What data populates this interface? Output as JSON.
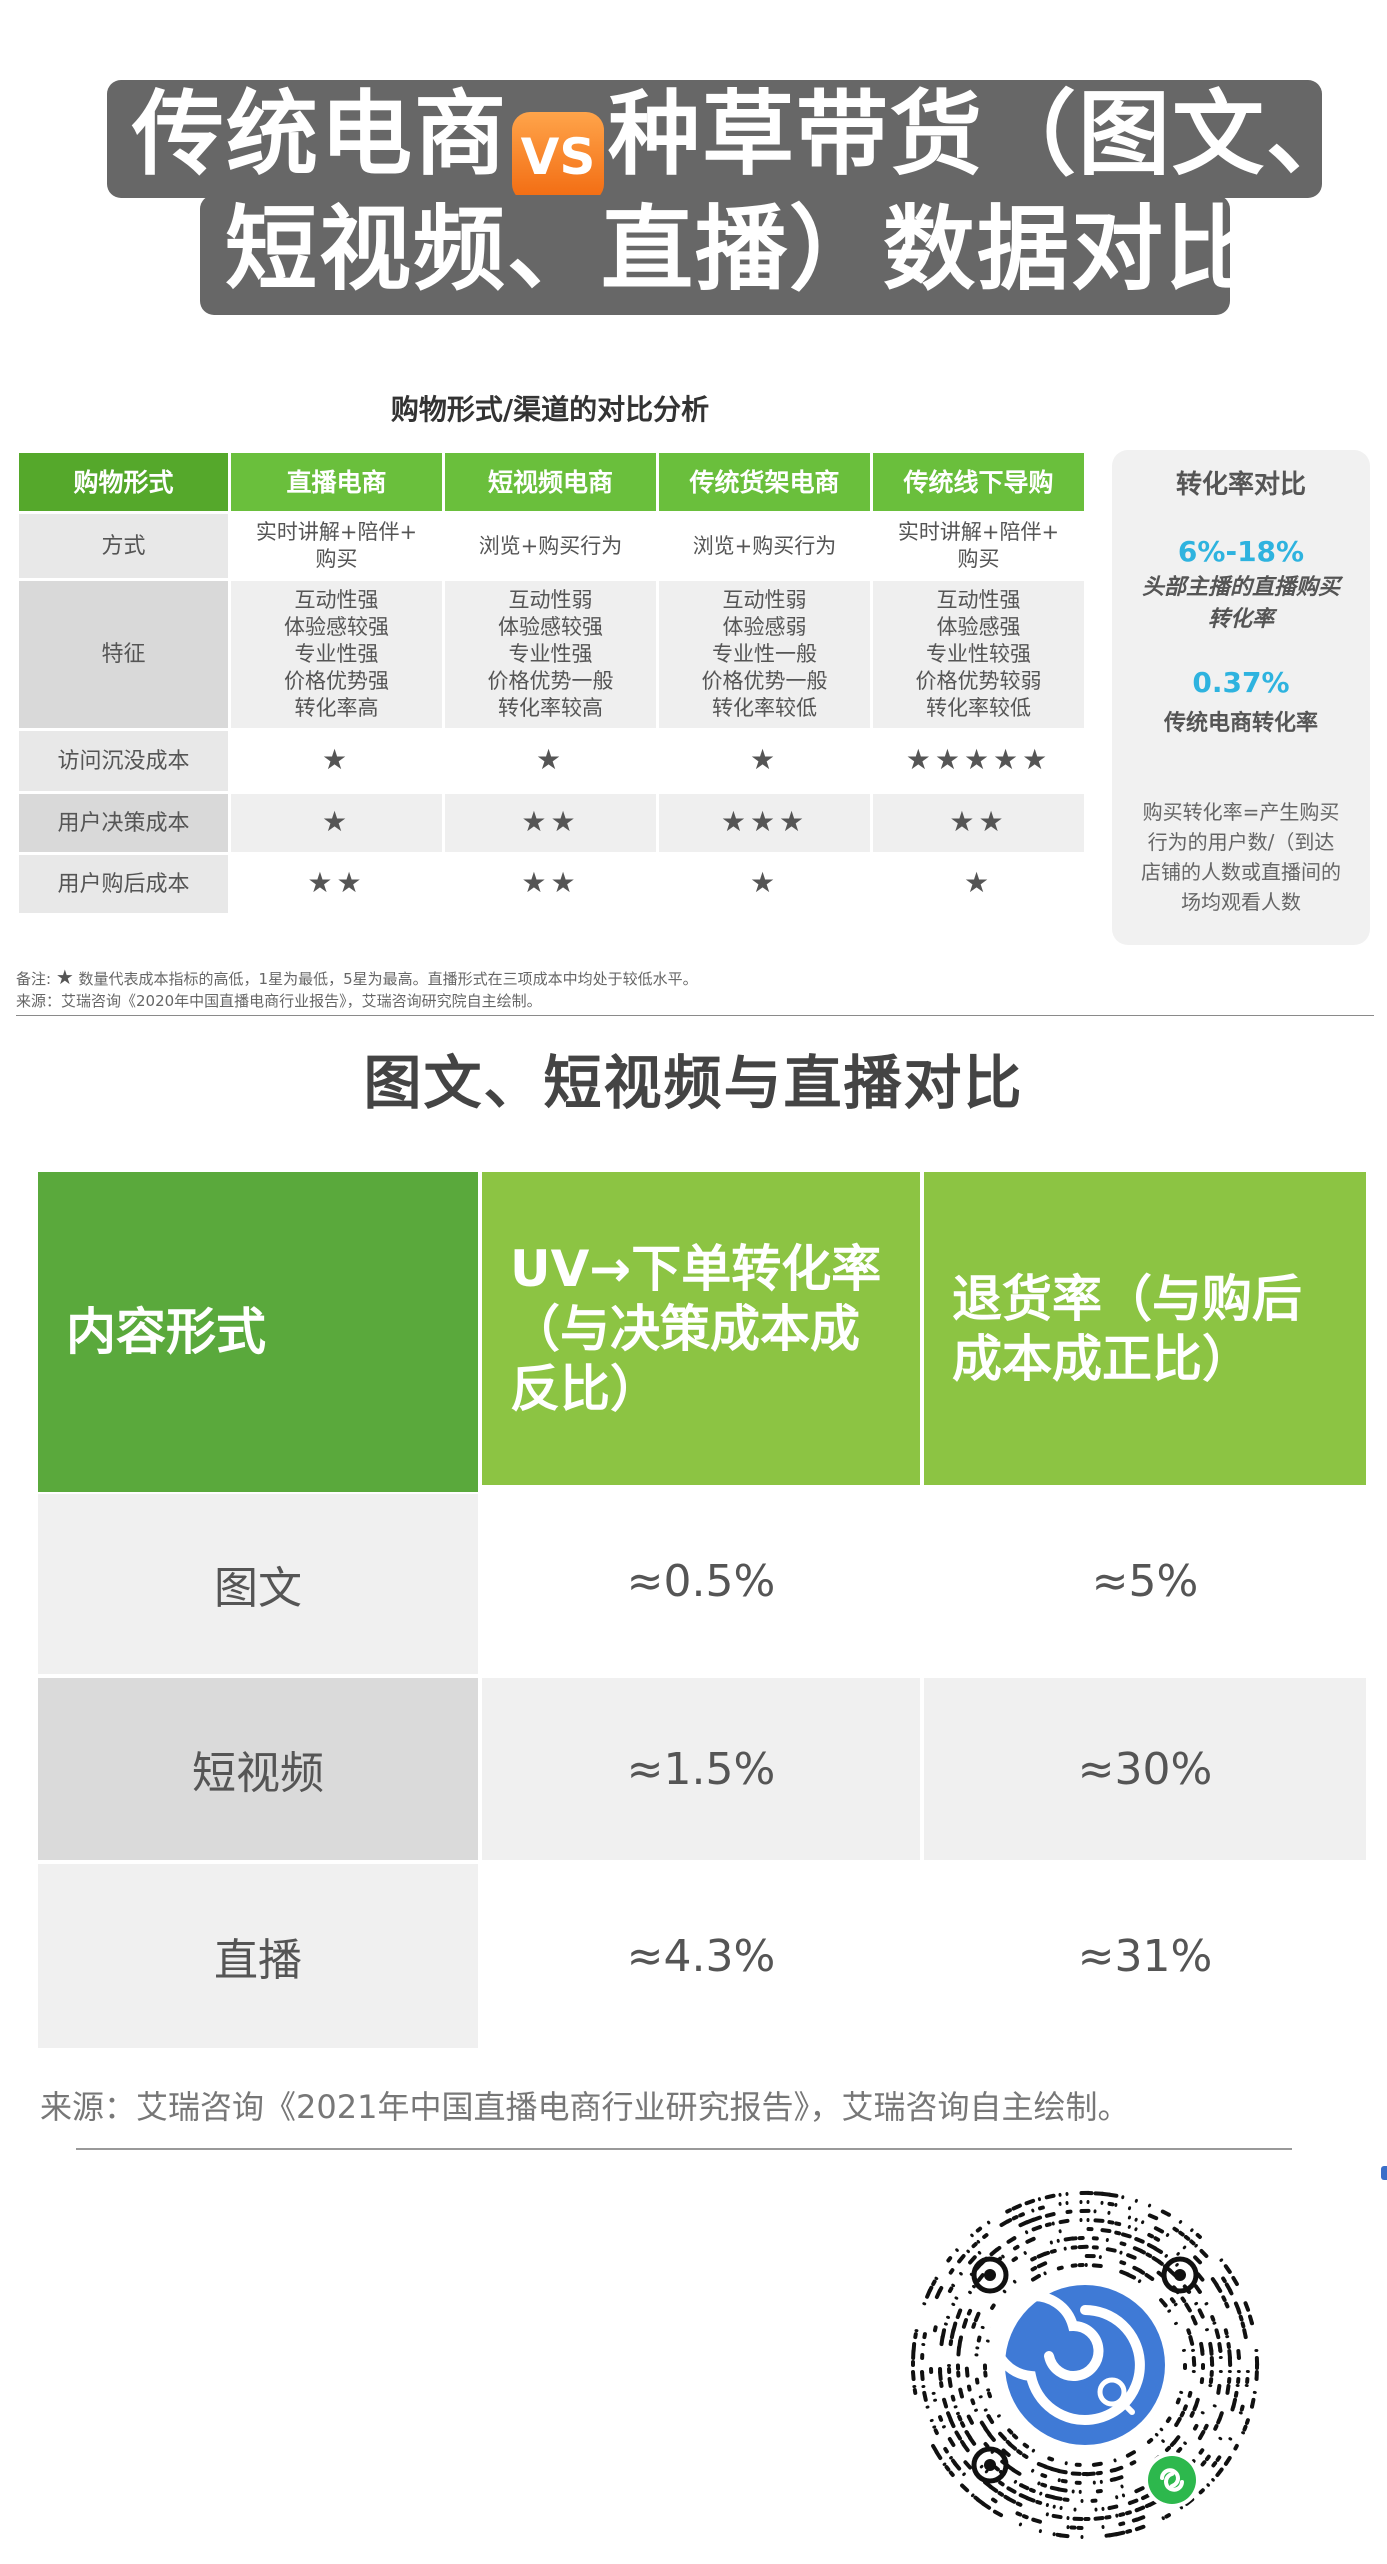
{
  "title": {
    "line1_part1": "传统电商",
    "vs_badge": "VS",
    "line1_part2": "种草带货（图文、",
    "line2": "短视频、直播）数据对比"
  },
  "section1": {
    "title": "购物形式/渠道的对比分析",
    "headers": [
      "购物形式",
      "直播电商",
      "短视频电商",
      "传统货架电商",
      "传统线下导购"
    ],
    "rows": [
      {
        "label": "方式",
        "cells": [
          "实时讲解+陪伴+\n购买",
          "浏览+购买行为",
          "浏览+购买行为",
          "实时讲解+陪伴+\n购买"
        ]
      },
      {
        "label": "特征",
        "cells": [
          "互动性强\n体验感较强\n专业性强\n价格优势强\n转化率高",
          "互动性弱\n体验感较强\n专业性强\n价格优势一般\n转化率较高",
          "互动性弱\n体验感弱\n专业性一般\n价格优势一般\n转化率较低",
          "互动性强\n体验感强\n专业性较强\n价格优势较弱\n转化率较低"
        ]
      },
      {
        "label": "访问沉没成本",
        "cells": [
          "★",
          "★",
          "★",
          "★★★★★"
        ]
      },
      {
        "label": "用户决策成本",
        "cells": [
          "★",
          "★★",
          "★★★",
          "★★"
        ]
      },
      {
        "label": "用户购后成本",
        "cells": [
          "★★",
          "★★",
          "★",
          "★"
        ]
      }
    ],
    "conversion": {
      "title": "转化率对比",
      "pct1": "6%-18%",
      "desc1": "头部主播的直播购买\n转化率",
      "pct2": "0.37%",
      "desc2": "传统电商转化率",
      "note": "购买转化率=产生购买\n行为的用户数/（到达\n店铺的人数或直播间的\n场均观看人数"
    },
    "note_prefix": "备注: ",
    "note_star": "★",
    "note_text": " 数量代表成本指标的高低，1星为最低，5星为最高。直播形式在三项成本中均处于较低水平。",
    "source": "来源：艾瑞咨询《2020年中国直播电商行业报告》，艾瑞咨询研究院自主绘制。"
  },
  "section2": {
    "title": "图文、短视频与直播对比",
    "headers": [
      "内容形式",
      "UV→下单转化率（与决策成本成反比）",
      "退货率（与购后成本成正比）"
    ],
    "rows": [
      {
        "label": "图文",
        "uv": "≈0.5%",
        "return": "≈5%"
      },
      {
        "label": "短视频",
        "uv": "≈1.5%",
        "return": "≈30%"
      },
      {
        "label": "直播",
        "uv": "≈4.3%",
        "return": "≈31%"
      }
    ],
    "source": "来源：艾瑞咨询《2021年中国直播电商行业研究报告》，艾瑞咨询自主绘制。"
  },
  "colors": {
    "header_green_dark": "#5aa93c",
    "header_green_light": "#8cc443",
    "table_green": "#6abf3c",
    "accent_blue": "#2eb3df",
    "title_bg": "#676767",
    "vs_orange": "#f47a1f"
  },
  "icons": {
    "qr": "mini-program-qr-code",
    "logo": "mini-program-logo"
  }
}
